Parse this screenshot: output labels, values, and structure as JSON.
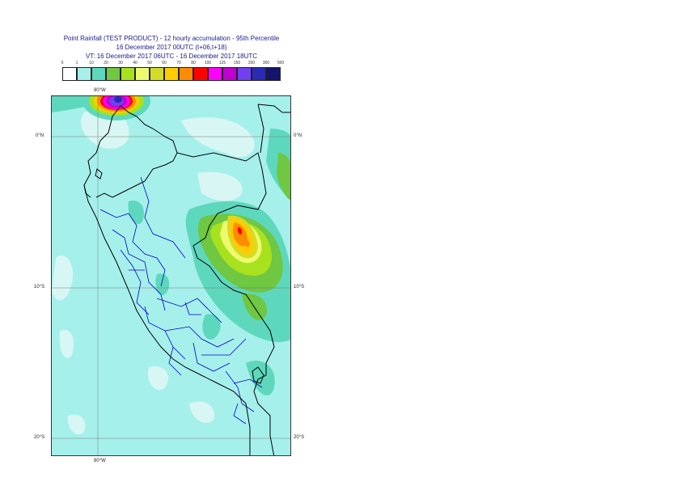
{
  "title": {
    "line1": "Point Rainfall (TEST PRODUCT) - 12 hourly accumulation - 95th Percentile",
    "line2": "16 December 2017 00UTC (t+06,t+18)",
    "line3": "VT: 16 December 2017 06UTC - 16 December 2017 18UTC"
  },
  "legend": {
    "ticks": [
      "0",
      "1",
      "10",
      "20",
      "30",
      "40",
      "50",
      "60",
      "70",
      "80",
      "100",
      "125",
      "150",
      "200",
      "300",
      "500"
    ],
    "colors": [
      "#ffffff",
      "#a6f0ec",
      "#5ed8bc",
      "#6fc742",
      "#a8e21e",
      "#eefa6e",
      "#d4dc2a",
      "#ffcc00",
      "#ff8c00",
      "#ff0000",
      "#ff00ff",
      "#c000d0",
      "#7040f0",
      "#2a2ab4",
      "#141470"
    ]
  },
  "axes": {
    "lon_top": "80°W",
    "lon_bottom": "80°W",
    "lat_left": [
      "0°N",
      "10°S",
      "20°S"
    ],
    "lat_right": [
      "0°N",
      "10°S",
      "20°S"
    ]
  },
  "map": {
    "background_color": "#a6f0ec",
    "light_color": "#d8f7f4",
    "border_color": "#000000",
    "region_color": "#0000cc"
  }
}
